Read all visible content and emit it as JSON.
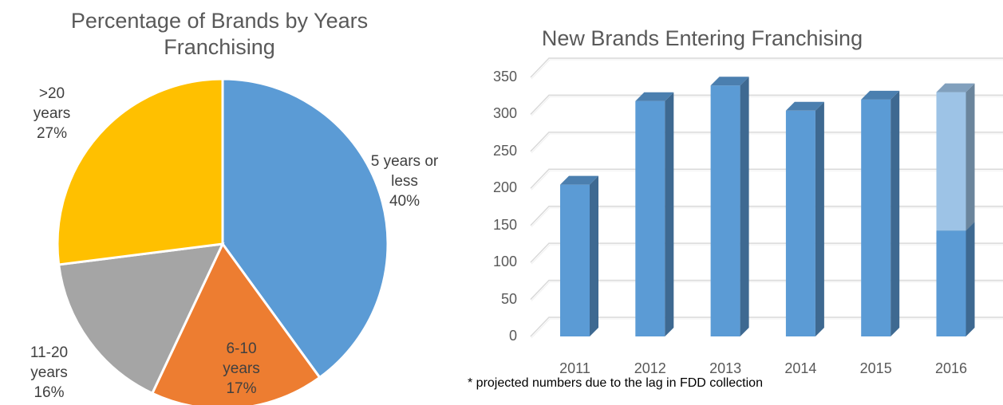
{
  "chart_data": [
    {
      "type": "pie",
      "title": "Percentage of Brands by Years Franchising",
      "slices": [
        {
          "label": "5 years or less",
          "percent_label": "40%",
          "value": 40,
          "color": "#5b9bd5"
        },
        {
          "label": "6-10 years",
          "percent_label": "17%",
          "value": 17,
          "color": "#ed7d31"
        },
        {
          "label": "11-20 years",
          "percent_label": "16%",
          "value": 16,
          "color": "#a5a5a5"
        },
        {
          "label": ">20 years",
          "percent_label": "27%",
          "value": 27,
          "color": "#ffc000"
        }
      ]
    },
    {
      "type": "bar",
      "style": "3d-column",
      "title": "New Brands Entering Franchising",
      "categories": [
        "2011",
        "2012",
        "2013",
        "2014",
        "2015",
        "2016"
      ],
      "series": [
        {
          "values": [
            205,
            318,
            339,
            305,
            320,
            143
          ],
          "color": "#5b9bd5"
        },
        {
          "values": [
            0,
            0,
            0,
            0,
            0,
            187
          ],
          "color": "#9dc3e6"
        }
      ],
      "ylim": [
        0,
        350
      ],
      "yticks": [
        "0",
        "50",
        "100",
        "150",
        "200",
        "250",
        "300",
        "350"
      ],
      "grid": true,
      "footnote": "* projected numbers due to the lag in FDD collection"
    }
  ]
}
